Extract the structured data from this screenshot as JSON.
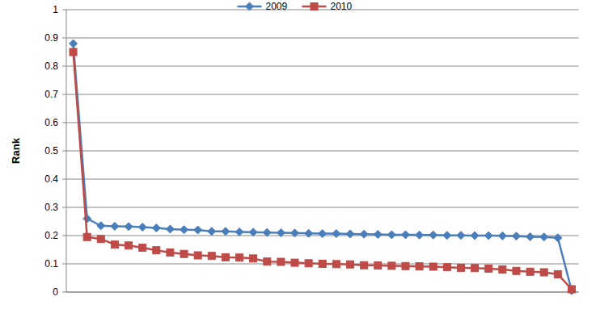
{
  "chart_data": {
    "type": "line",
    "y_label": "Rank",
    "categories": [
      null,
      null,
      null,
      null,
      null,
      null,
      null,
      null,
      null,
      null,
      null,
      null,
      null,
      null,
      null,
      null,
      null,
      null,
      null,
      null,
      null,
      null,
      null,
      null,
      null,
      null,
      null,
      null,
      null,
      null,
      null,
      null,
      null,
      null,
      null,
      null,
      null
    ],
    "series": [
      {
        "name": "2009",
        "color": "#4a7ebb",
        "marker": "diamond",
        "values": [
          0.88,
          0.26,
          0.235,
          0.233,
          0.232,
          0.23,
          0.227,
          0.223,
          0.221,
          0.22,
          0.215,
          0.215,
          0.213,
          0.212,
          0.211,
          0.21,
          0.209,
          0.208,
          0.207,
          0.207,
          0.206,
          0.205,
          0.204,
          0.203,
          0.203,
          0.202,
          0.202,
          0.201,
          0.201,
          0.2,
          0.2,
          0.199,
          0.198,
          0.196,
          0.195,
          0.192,
          0.005
        ]
      },
      {
        "name": "2010",
        "color": "#be4b48",
        "marker": "square",
        "values": [
          0.85,
          0.195,
          0.188,
          0.168,
          0.165,
          0.157,
          0.148,
          0.14,
          0.135,
          0.13,
          0.128,
          0.123,
          0.122,
          0.119,
          0.108,
          0.107,
          0.104,
          0.102,
          0.1,
          0.099,
          0.098,
          0.095,
          0.094,
          0.093,
          0.092,
          0.091,
          0.09,
          0.088,
          0.086,
          0.085,
          0.083,
          0.08,
          0.075,
          0.072,
          0.07,
          0.063,
          0.01
        ]
      }
    ],
    "ylim": [
      0,
      1
    ],
    "yticks": [
      0,
      0.1,
      0.2,
      0.3,
      0.4,
      0.5,
      0.6,
      0.7,
      0.8,
      0.9,
      1
    ],
    "grid": true,
    "legend": "top"
  }
}
